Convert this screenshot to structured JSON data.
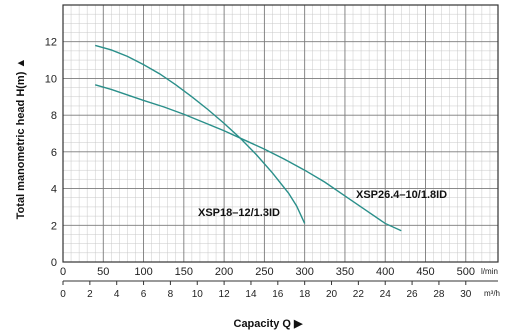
{
  "chart_data": {
    "type": "line",
    "title": "",
    "ylabel": "Total manometric head H(m)",
    "xlabel": "Capacity Q",
    "ylim": [
      0,
      14
    ],
    "y_ticks": [
      "0",
      "2",
      "4",
      "6",
      "8",
      "10",
      "12"
    ],
    "x_primary": {
      "unit": "l/min",
      "xlim": [
        0,
        540
      ],
      "ticks": [
        "0",
        "50",
        "100",
        "150",
        "200",
        "250",
        "300",
        "350",
        "400",
        "450",
        "500"
      ]
    },
    "x_secondary": {
      "unit": "m³/h",
      "ticks": [
        "0",
        "2",
        "4",
        "6",
        "8",
        "10",
        "12",
        "14",
        "16",
        "18",
        "20",
        "22",
        "24",
        "26",
        "28",
        "30"
      ]
    },
    "grid": true,
    "series": [
      {
        "name": "XSP18–12/1.3ID",
        "color": "#2a8f8a",
        "points": [
          [
            40,
            11.8
          ],
          [
            60,
            11.55
          ],
          [
            80,
            11.2
          ],
          [
            100,
            10.75
          ],
          [
            120,
            10.25
          ],
          [
            140,
            9.65
          ],
          [
            160,
            9.0
          ],
          [
            180,
            8.3
          ],
          [
            200,
            7.55
          ],
          [
            220,
            6.75
          ],
          [
            240,
            5.85
          ],
          [
            260,
            4.85
          ],
          [
            280,
            3.75
          ],
          [
            290,
            3.05
          ],
          [
            300,
            2.1
          ]
        ]
      },
      {
        "name": "XSP26.4–10/1.8ID",
        "color": "#2a8f8a",
        "points": [
          [
            40,
            9.65
          ],
          [
            60,
            9.4
          ],
          [
            80,
            9.1
          ],
          [
            100,
            8.8
          ],
          [
            125,
            8.45
          ],
          [
            150,
            8.05
          ],
          [
            175,
            7.6
          ],
          [
            200,
            7.15
          ],
          [
            225,
            6.65
          ],
          [
            250,
            6.15
          ],
          [
            275,
            5.6
          ],
          [
            300,
            5.0
          ],
          [
            325,
            4.35
          ],
          [
            350,
            3.6
          ],
          [
            375,
            2.85
          ],
          [
            400,
            2.1
          ],
          [
            420,
            1.7
          ]
        ]
      }
    ]
  }
}
